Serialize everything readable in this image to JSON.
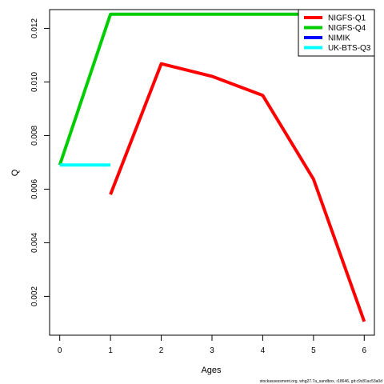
{
  "chart_data": {
    "type": "line",
    "title": "",
    "xlabel": "Ages",
    "ylabel": "Q",
    "xlim": [
      -0.2,
      6.2
    ],
    "ylim": [
      0.00055,
      0.0127
    ],
    "x_ticks": [
      0,
      1,
      2,
      3,
      4,
      5,
      6
    ],
    "y_ticks": [
      0.002,
      0.004,
      0.006,
      0.008,
      0.01,
      0.012
    ],
    "y_tick_labels": [
      "0.002",
      "0.004",
      "0.006",
      "0.008",
      "0.010",
      "0.012"
    ],
    "grid": false,
    "legend_position": "top-right",
    "series": [
      {
        "name": "NIGFS-Q1",
        "color": "#ff0000",
        "x": [
          1,
          2,
          3,
          4,
          5,
          6
        ],
        "y": [
          0.0058,
          0.01068,
          0.01021,
          0.0095,
          0.00637,
          0.00106
        ]
      },
      {
        "name": "NIGFS-Q4",
        "color": "#00cd00",
        "x": [
          0,
          1,
          2,
          3,
          4,
          5,
          6
        ],
        "y": [
          0.0069,
          0.01253,
          0.01253,
          0.01253,
          0.01253,
          0.01253,
          0.01253
        ]
      },
      {
        "name": "NIMIK",
        "color": "#0000ff",
        "x": [],
        "y": []
      },
      {
        "name": "UK-BTS-Q3",
        "color": "#00ffff",
        "x": [
          0,
          1
        ],
        "y": [
          0.0069,
          0.0069
        ]
      }
    ]
  },
  "footer": "stockassessment.org, whg27.7a_sandbox, r18646, git:c9c81ac53a0d"
}
